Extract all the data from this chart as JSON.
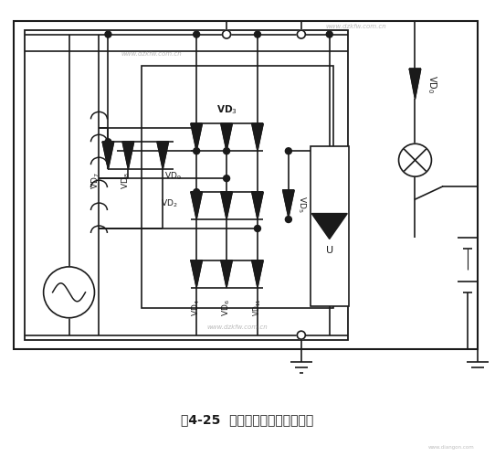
{
  "title": "图4-25  十一管交流电机的电路图",
  "bg_color": "#ffffff",
  "line_color": "#1a1a1a",
  "watermark1": "www.dzkfw.com.cn",
  "watermark2": "www.dzkfw.com.cn",
  "watermark3": "www.dzkfw.com.cn",
  "watermark4": "www.diangon.com",
  "figsize": [
    5.42,
    5.0
  ],
  "dpi": 100
}
